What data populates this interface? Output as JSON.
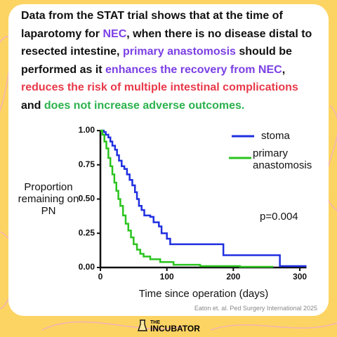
{
  "header": {
    "segments": [
      {
        "text": "Data from the STAT trial shows that at the time of laparotomy for ",
        "color": "#111111"
      },
      {
        "text": "NEC",
        "color": "#7b3fe4"
      },
      {
        "text": ", when there is no disease distal to resected intestine, ",
        "color": "#111111"
      },
      {
        "text": "primary anastomosis",
        "color": "#7b3fe4"
      },
      {
        "text": " should be performed as it ",
        "color": "#111111"
      },
      {
        "text": "enhances the recovery from NEC",
        "color": "#7b3fe4"
      },
      {
        "text": ", ",
        "color": "#111111"
      },
      {
        "text": "reduces the risk of multiple intestinal complications",
        "color": "#e8394a"
      },
      {
        "text": " and ",
        "color": "#111111"
      },
      {
        "text": "does not increase adverse outcomes.",
        "color": "#2bb24c"
      }
    ]
  },
  "chart_data": {
    "type": "step",
    "xlabel": "Time since operation (days)",
    "ylabel": "Proportion remaining on PN",
    "annotation": "p=0.004",
    "xlim": [
      0,
      310
    ],
    "ylim": [
      0,
      1
    ],
    "xticks": [
      0,
      100,
      200,
      300
    ],
    "yticks": [
      {
        "value": 0,
        "label": "0.00"
      },
      {
        "value": 0.25,
        "label": "0.25"
      },
      {
        "value": 0.5,
        "label": "0.50"
      },
      {
        "value": 0.75,
        "label": "0.75"
      },
      {
        "value": 1,
        "label": "1.00"
      }
    ],
    "series": [
      {
        "name": "stoma",
        "color": "#1f2fe0",
        "x": [
          0,
          5,
          8,
          12,
          15,
          18,
          22,
          25,
          28,
          32,
          36,
          40,
          44,
          48,
          52,
          55,
          58,
          62,
          66,
          75,
          80,
          88,
          92,
          100,
          105,
          185,
          270,
          310
        ],
        "values": [
          1,
          0.99,
          0.97,
          0.95,
          0.92,
          0.89,
          0.86,
          0.82,
          0.78,
          0.74,
          0.72,
          0.68,
          0.64,
          0.6,
          0.55,
          0.5,
          0.45,
          0.42,
          0.38,
          0.37,
          0.33,
          0.3,
          0.25,
          0.21,
          0.17,
          0.09,
          0.01,
          0.01
        ]
      },
      {
        "name": "primary anastomosis",
        "color": "#2bc41f",
        "x": [
          0,
          3,
          6,
          9,
          12,
          15,
          18,
          21,
          24,
          27,
          30,
          34,
          38,
          42,
          46,
          50,
          55,
          60,
          65,
          75,
          90,
          110,
          150,
          210,
          260
        ],
        "values": [
          1,
          0.97,
          0.92,
          0.87,
          0.8,
          0.74,
          0.68,
          0.62,
          0.56,
          0.5,
          0.45,
          0.38,
          0.32,
          0.27,
          0.22,
          0.17,
          0.13,
          0.1,
          0.08,
          0.06,
          0.04,
          0.02,
          0.01,
          0.005,
          0.005
        ]
      }
    ]
  },
  "citation": "Eaton et. al. Ped Surgery International 2025",
  "brand": {
    "small": "THE",
    "name": "INCUBATOR"
  }
}
